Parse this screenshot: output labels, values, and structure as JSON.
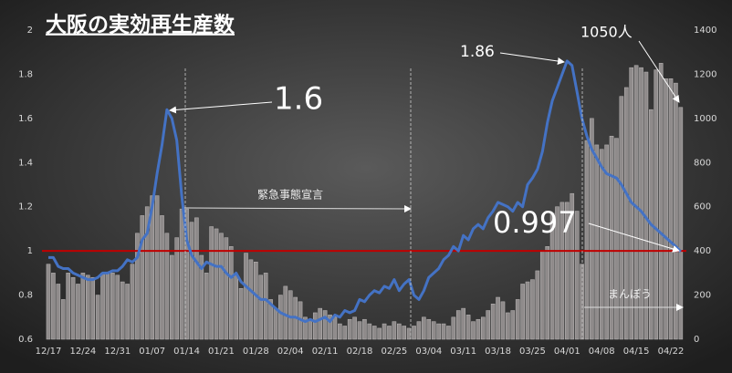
{
  "chart_data": {
    "type": "bar-line",
    "title": "大阪の実効再生産数",
    "categories": [
      "12/17",
      null,
      null,
      null,
      null,
      null,
      null,
      "12/24",
      null,
      null,
      null,
      null,
      null,
      null,
      "12/31",
      null,
      null,
      null,
      null,
      null,
      null,
      "01/07",
      null,
      null,
      null,
      null,
      null,
      null,
      "01/14",
      null,
      null,
      null,
      null,
      null,
      null,
      "01/21",
      null,
      null,
      null,
      null,
      null,
      null,
      "01/28",
      null,
      null,
      null,
      null,
      null,
      null,
      "02/04",
      null,
      null,
      null,
      null,
      null,
      null,
      "02/11",
      null,
      null,
      null,
      null,
      null,
      null,
      "02/18",
      null,
      null,
      null,
      null,
      null,
      null,
      "02/25",
      null,
      null,
      null,
      null,
      null,
      null,
      "03/04",
      null,
      null,
      null,
      null,
      null,
      null,
      "03/11",
      null,
      null,
      null,
      null,
      null,
      null,
      "03/18",
      null,
      null,
      null,
      null,
      null,
      null,
      "03/25",
      null,
      null,
      null,
      null,
      null,
      null,
      "04/01",
      null,
      null,
      null,
      null,
      null,
      null,
      "04/08",
      null,
      null,
      null,
      null,
      null,
      null,
      "04/15",
      null,
      null,
      null,
      null,
      null,
      null,
      "04/22",
      null,
      null
    ],
    "series": [
      {
        "color": "#8f8b8b",
        "axis": "y2",
        "values": [
          340,
          300,
          250,
          180,
          300,
          280,
          250,
          300,
          290,
          280,
          200,
          300,
          300,
          300,
          290,
          260,
          250,
          340,
          480,
          560,
          600,
          650,
          650,
          560,
          480,
          380,
          460,
          590,
          590,
          530,
          550,
          380,
          300,
          510,
          500,
          480,
          460,
          420,
          290,
          230,
          390,
          360,
          350,
          290,
          300,
          180,
          140,
          200,
          240,
          220,
          190,
          170,
          100,
          90,
          120,
          140,
          130,
          110,
          100,
          70,
          60,
          90,
          100,
          80,
          90,
          70,
          60,
          50,
          70,
          60,
          80,
          70,
          60,
          50,
          60,
          80,
          100,
          90,
          80,
          70,
          70,
          60,
          100,
          130,
          140,
          110,
          80,
          90,
          100,
          130,
          160,
          190,
          170,
          120,
          130,
          180,
          250,
          260,
          270,
          310,
          400,
          420,
          570,
          600,
          620,
          620,
          660,
          580,
          340,
          900,
          1000,
          880,
          860,
          880,
          920,
          910,
          1100,
          1140,
          1230,
          1240,
          1230,
          1210,
          1040,
          1220,
          1250,
          1180,
          1180,
          1160,
          1050
        ]
      },
      {
        "color": "#4472c4",
        "axis": "y",
        "values": [
          0.97,
          0.97,
          0.93,
          0.92,
          0.92,
          0.9,
          0.89,
          0.88,
          0.87,
          0.87,
          0.88,
          0.9,
          0.9,
          0.91,
          0.91,
          0.93,
          0.96,
          0.95,
          0.97,
          1.05,
          1.08,
          1.2,
          1.35,
          1.48,
          1.64,
          1.6,
          1.5,
          1.25,
          1.05,
          0.98,
          0.95,
          0.92,
          0.95,
          0.94,
          0.93,
          0.93,
          0.9,
          0.88,
          0.9,
          0.86,
          0.84,
          0.82,
          0.8,
          0.78,
          0.78,
          0.76,
          0.74,
          0.72,
          0.71,
          0.7,
          0.7,
          0.69,
          0.68,
          0.69,
          0.68,
          0.69,
          0.7,
          0.68,
          0.71,
          0.7,
          0.73,
          0.72,
          0.73,
          0.78,
          0.77,
          0.8,
          0.82,
          0.81,
          0.84,
          0.83,
          0.87,
          0.82,
          0.85,
          0.87,
          0.8,
          0.78,
          0.82,
          0.88,
          0.9,
          0.92,
          0.96,
          0.98,
          1.02,
          1.0,
          1.07,
          1.05,
          1.1,
          1.12,
          1.1,
          1.15,
          1.18,
          1.22,
          1.21,
          1.2,
          1.18,
          1.22,
          1.2,
          1.3,
          1.33,
          1.37,
          1.45,
          1.58,
          1.68,
          1.74,
          1.8,
          1.86,
          1.84,
          1.72,
          1.6,
          1.52,
          1.46,
          1.42,
          1.38,
          1.35,
          1.34,
          1.33,
          1.3,
          1.26,
          1.22,
          1.2,
          1.18,
          1.15,
          1.12,
          1.1,
          1.08,
          1.06,
          1.04,
          1.02,
          0.997
        ]
      }
    ],
    "ylim": [
      0.6,
      2
    ],
    "yticks": [
      0.6,
      0.8,
      1,
      1.2,
      1.4,
      1.6,
      1.8,
      2
    ],
    "y2lim": [
      0,
      1400
    ],
    "y2ticks": [
      0,
      200,
      400,
      600,
      800,
      1000,
      1200,
      1400
    ],
    "hline": {
      "value": 1,
      "color": "#c00000"
    },
    "annotations": [
      "1.6",
      "1.86",
      "1050人",
      "0.997",
      "緊急事態宣言",
      "まんぼう"
    ]
  }
}
